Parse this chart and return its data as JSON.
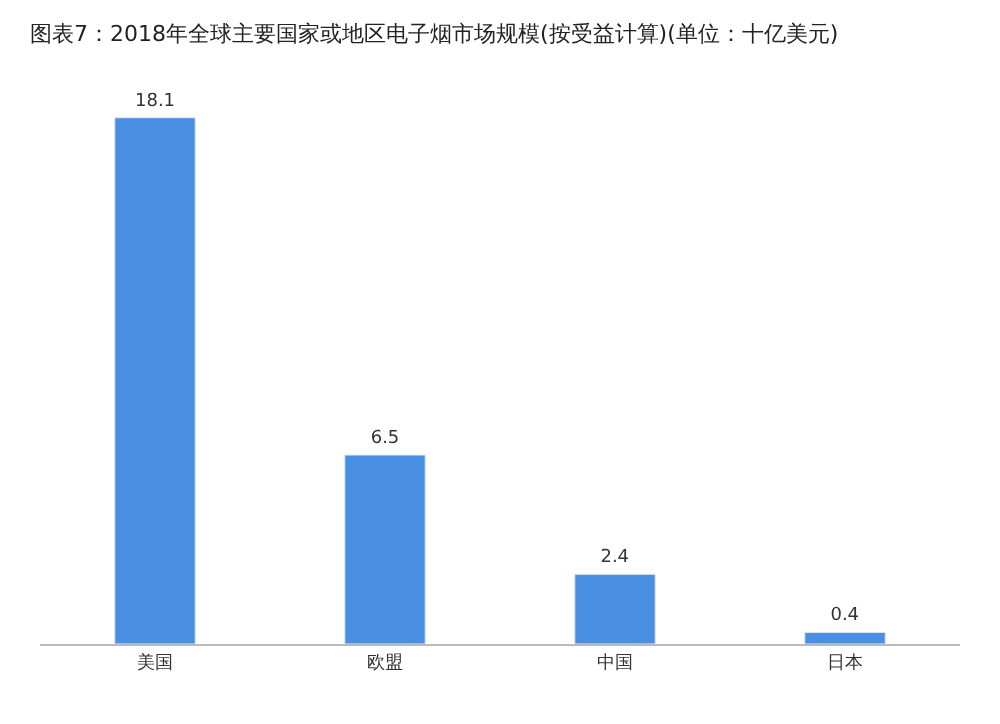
{
  "chart_data": {
    "type": "bar",
    "title": "图表7：2018年全球主要国家或地区电子烟市场规模(按受益计算)(单位：十亿美元)",
    "categories": [
      "美国",
      "欧盟",
      "中国",
      "日本"
    ],
    "values": [
      18.1,
      6.5,
      2.4,
      0.4
    ],
    "color": "#4a90e2",
    "data_labels": true
  }
}
